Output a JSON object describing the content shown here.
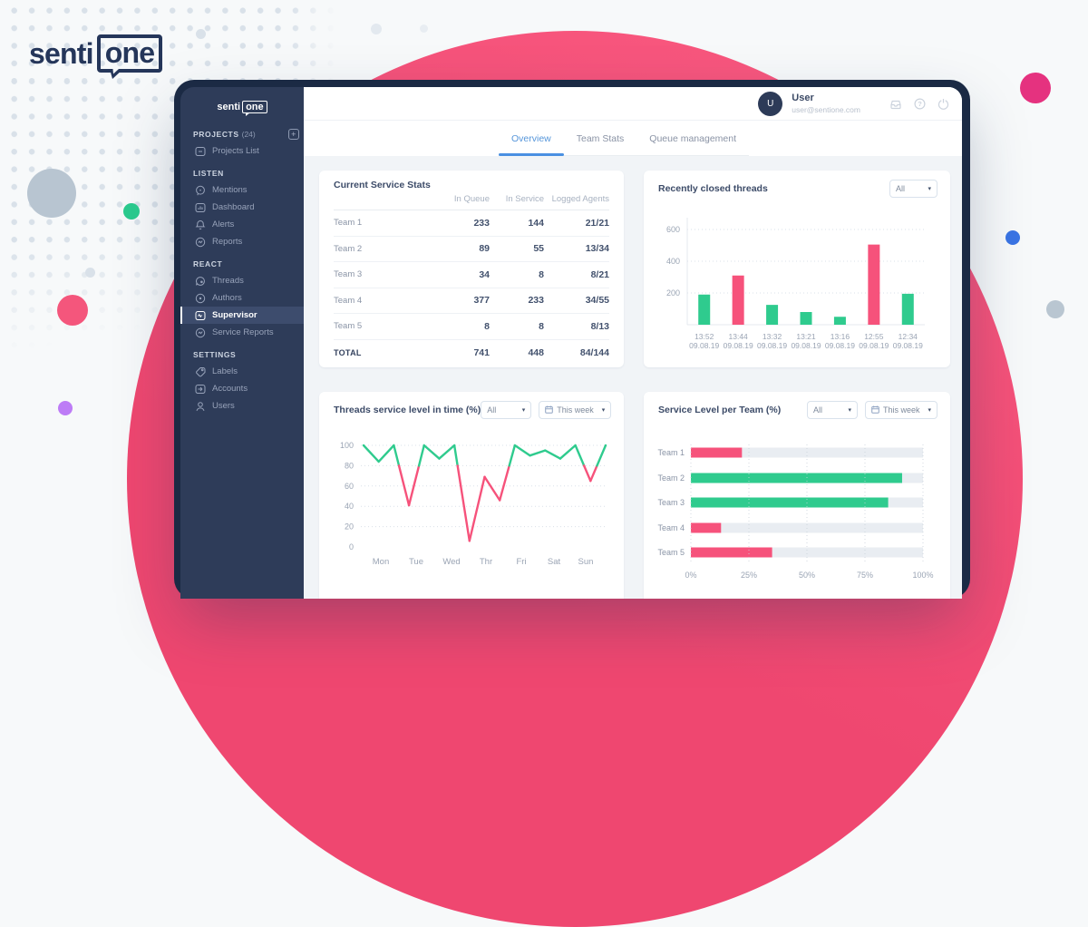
{
  "logo": {
    "part1": "senti",
    "part2": "one"
  },
  "palette": {
    "green": "#2fcb8e",
    "pink": "#f6527b",
    "tab_blue": "#4a90e2",
    "magenta": "#e5327f",
    "blue_accent": "#3a74e4",
    "purple": "#bd7cf6",
    "gray_blue": "#b9c6d1",
    "big_circle": "#f4507a"
  },
  "sidebar": {
    "logo": {
      "part1": "senti",
      "part2": "one"
    },
    "sections": [
      {
        "header": "PROJECTS",
        "count": "(24)",
        "action": "+",
        "items": [
          {
            "label": "Projects List",
            "icon": "projects-list-icon",
            "active": false
          }
        ]
      },
      {
        "header": "LISTEN",
        "items": [
          {
            "label": "Mentions",
            "icon": "mentions-icon",
            "active": false
          },
          {
            "label": "Dashboard",
            "icon": "dashboard-icon",
            "active": false
          },
          {
            "label": "Alerts",
            "icon": "alerts-icon",
            "active": false
          },
          {
            "label": "Reports",
            "icon": "reports-icon",
            "active": false
          }
        ]
      },
      {
        "header": "REACT",
        "items": [
          {
            "label": "Threads",
            "icon": "threads-icon",
            "active": false
          },
          {
            "label": "Authors",
            "icon": "authors-icon",
            "active": false
          },
          {
            "label": "Supervisor",
            "icon": "supervisor-icon",
            "active": true
          },
          {
            "label": "Service Reports",
            "icon": "service-reports-icon",
            "active": false
          }
        ]
      },
      {
        "header": "SETTINGS",
        "items": [
          {
            "label": "Labels",
            "icon": "labels-icon",
            "active": false
          },
          {
            "label": "Accounts",
            "icon": "accounts-icon",
            "active": false
          },
          {
            "label": "Users",
            "icon": "users-icon",
            "active": false
          }
        ]
      }
    ]
  },
  "topbar": {
    "user_name": "User",
    "user_email": "user@sentione.com",
    "avatar_initial": "U"
  },
  "tabs": [
    {
      "label": "Overview",
      "active": true
    },
    {
      "label": "Team Stats",
      "active": false
    },
    {
      "label": "Queue management",
      "active": false
    }
  ],
  "chart_data": [
    {
      "type": "table",
      "title": "Current Service Stats",
      "columns": [
        "",
        "In Queue",
        "In Service",
        "Logged Agents"
      ],
      "rows": [
        [
          "Team 1",
          "233",
          "144",
          "21/21"
        ],
        [
          "Team 2",
          "89",
          "55",
          "13/34"
        ],
        [
          "Team 3",
          "34",
          "8",
          "8/21"
        ],
        [
          "Team 4",
          "377",
          "233",
          "34/55"
        ],
        [
          "Team 5",
          "8",
          "8",
          "8/13"
        ],
        [
          "TOTAL",
          "741",
          "448",
          "84/144"
        ]
      ]
    },
    {
      "type": "bar",
      "title": "Recently closed threads",
      "filter": "All",
      "categories": [
        "13:52",
        "13:44",
        "13:32",
        "13:21",
        "13:16",
        "12:55",
        "12:34"
      ],
      "dates": [
        "09.08.19",
        "09.08.19",
        "09.08.19",
        "09.08.19",
        "09.08.19",
        "09.08.19",
        "09.08.19"
      ],
      "values": [
        190,
        310,
        125,
        80,
        50,
        505,
        195
      ],
      "colors": [
        "green",
        "pink",
        "green",
        "green",
        "green",
        "pink",
        "green"
      ],
      "ylim": [
        0,
        650
      ],
      "yticks": [
        200,
        400,
        600
      ]
    },
    {
      "type": "line",
      "title": "Threads service level in time (%)",
      "filters": [
        "All",
        "This week"
      ],
      "x_labels": [
        "Mon",
        "Tue",
        "Wed",
        "Thr",
        "Fri",
        "Sat",
        "Sun"
      ],
      "values": [
        100,
        84,
        100,
        41,
        100,
        87,
        100,
        6,
        69,
        46,
        100,
        90,
        95,
        87,
        100,
        65,
        100
      ],
      "ylim": [
        0,
        100
      ],
      "yticks": [
        0,
        20,
        40,
        60,
        80,
        100
      ],
      "color_threshold": 80
    },
    {
      "type": "hbar",
      "title": "Service Level per Team (%)",
      "filters": [
        "All",
        "This week"
      ],
      "categories": [
        "Team 1",
        "Team 2",
        "Team 3",
        "Team 4",
        "Team 5"
      ],
      "values": [
        22,
        91,
        85,
        13,
        35
      ],
      "colors": [
        "pink",
        "green",
        "green",
        "pink",
        "pink"
      ],
      "xtick_labels": [
        "0%",
        "25%",
        "50%",
        "75%",
        "100%"
      ],
      "xlim": [
        0,
        100
      ]
    }
  ]
}
